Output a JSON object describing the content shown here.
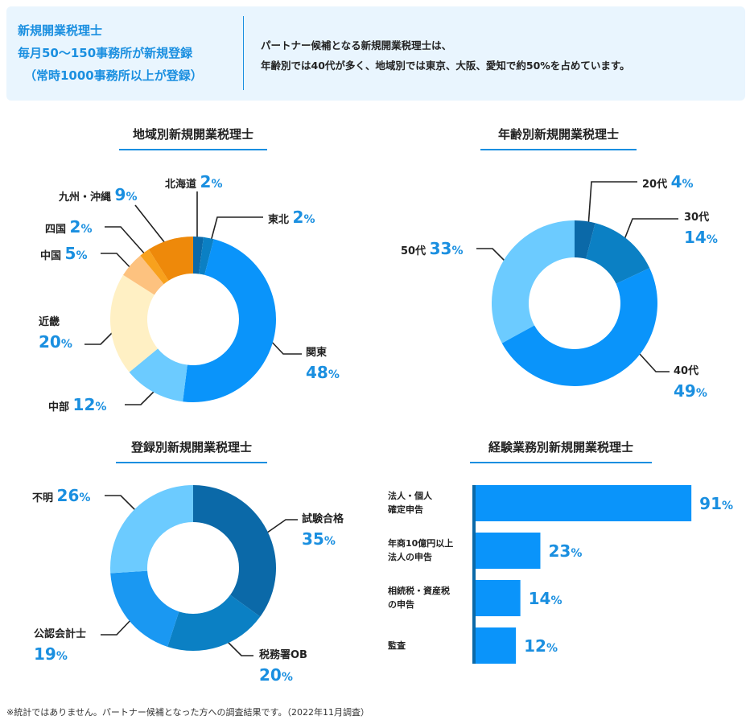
{
  "header": {
    "left_lines": [
      "新規開業税理士",
      "毎月50〜150事務所が新規登録",
      "（常時1000事務所以上が登録）"
    ],
    "right_lines": [
      "パートナー候補となる新規開業税理士は、",
      "年齢別では40代が多く、地域別では東京、大阪、愛知で約50%を占めています。"
    ],
    "accent": "#1a8fe0",
    "background": "#e9f5fe"
  },
  "chart_data": [
    {
      "type": "pie",
      "title": "地域別新規開業税理士",
      "donut": true,
      "categories": [
        "北海道",
        "東北",
        "関東",
        "中部",
        "近畿",
        "中国",
        "四国",
        "九州・沖縄"
      ],
      "values": [
        2,
        2,
        48,
        12,
        20,
        5,
        2,
        9
      ],
      "colors": [
        "#0b69a8",
        "#0b80c4",
        "#0a94fa",
        "#6ccbff",
        "#fff0c4",
        "#fdc27f",
        "#f8a11d",
        "#ee890a"
      ],
      "unit": "%"
    },
    {
      "type": "pie",
      "title": "年齢別新規開業税理士",
      "donut": true,
      "categories": [
        "20代",
        "30代",
        "40代",
        "50代"
      ],
      "values": [
        4,
        14,
        49,
        33
      ],
      "colors": [
        "#0b69a8",
        "#0b80c4",
        "#0a94fa",
        "#6ccbff"
      ],
      "unit": "%"
    },
    {
      "type": "pie",
      "title": "登録別新規開業税理士",
      "donut": true,
      "categories": [
        "試験合格",
        "税務署OB",
        "公認会計士",
        "不明"
      ],
      "values": [
        35,
        20,
        19,
        26
      ],
      "colors": [
        "#0b69a8",
        "#0b80c4",
        "#1a98f2",
        "#6ccbff"
      ],
      "unit": "%"
    },
    {
      "type": "bar",
      "orientation": "horizontal",
      "title": "経験業務別新規開業税理士",
      "categories": [
        "法人・個人\n確定申告",
        "年商10億円以上\n法人の申告",
        "相続税・資産税\nの申告",
        "監査"
      ],
      "values": [
        91,
        23,
        14,
        12
      ],
      "color": "#0a94fa",
      "unit": "%"
    }
  ],
  "footnote": "※統計ではありません。パートナー候補となった方への調査結果です。（2022年11月調査）"
}
